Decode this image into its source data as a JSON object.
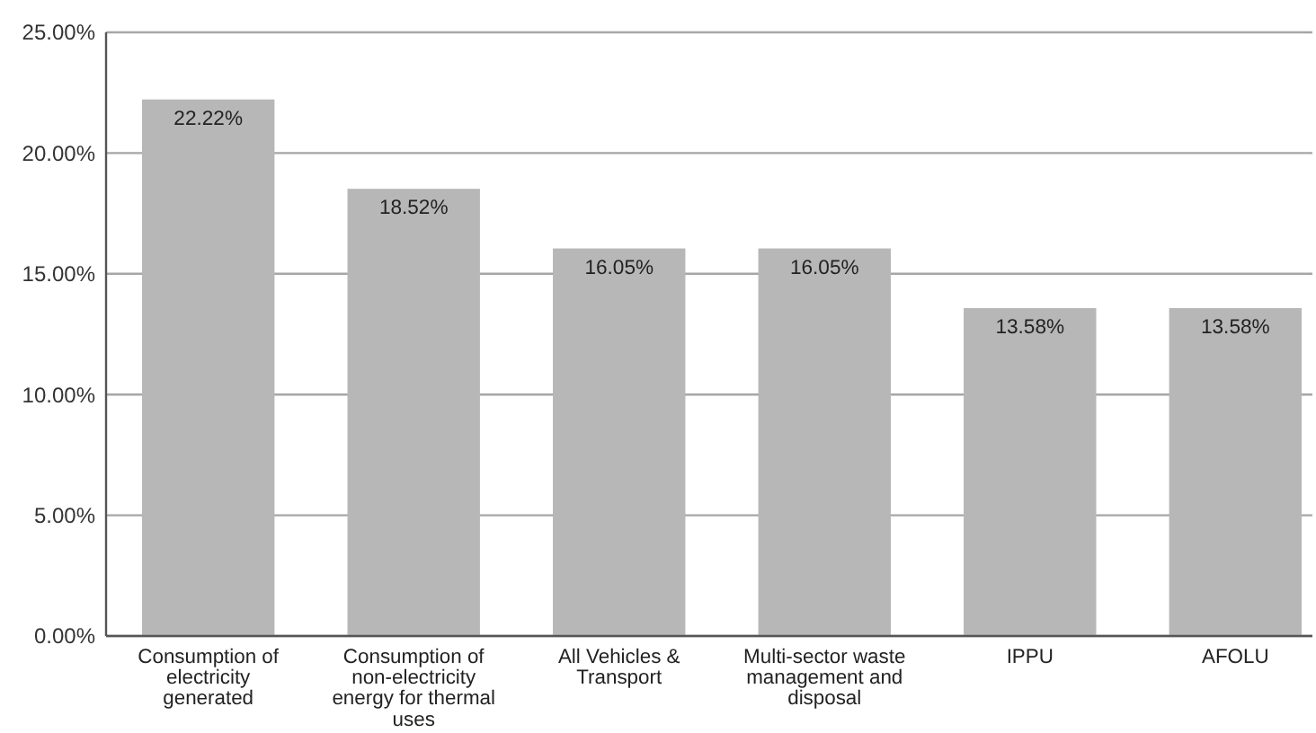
{
  "chart_data": {
    "type": "bar",
    "categories": [
      "Consumption of electricity generated",
      "Consumption of non-electricity energy for thermal uses",
      "All Vehicles & Transport",
      "Multi-sector waste management and disposal",
      "IPPU",
      "AFOLU"
    ],
    "values": [
      22.22,
      18.52,
      16.05,
      16.05,
      13.58,
      13.58
    ],
    "value_labels": [
      "22.22%",
      "18.52%",
      "16.05%",
      "16.05%",
      "13.58%",
      "13.58%"
    ],
    "color": "#b7b7b7",
    "ylim": [
      0,
      25
    ],
    "yticks": [
      {
        "value": 0,
        "label": "0.00%"
      },
      {
        "value": 5,
        "label": "5.00%"
      },
      {
        "value": 10,
        "label": "10.00%"
      },
      {
        "value": 15,
        "label": "15.00%"
      },
      {
        "value": 20,
        "label": "20.00%"
      },
      {
        "value": 25,
        "label": "25.00%"
      }
    ],
    "grid": "y"
  }
}
